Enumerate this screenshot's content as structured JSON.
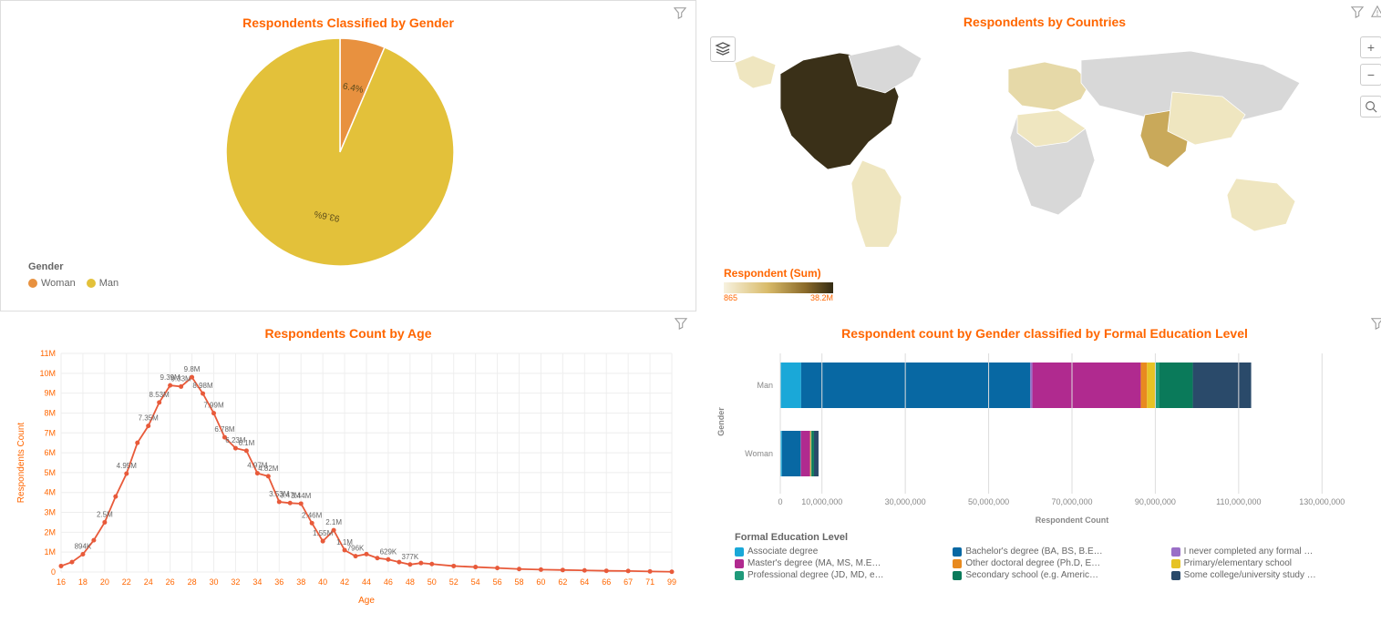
{
  "pie": {
    "title": "Respondents Classified by Gender",
    "legend_title": "Gender",
    "slices": [
      {
        "label": "Woman",
        "pct": 6.4,
        "pct_label": "6.4%",
        "color": "#e8913f"
      },
      {
        "label": "Man",
        "pct": 93.6,
        "pct_label": "93.6%",
        "color": "#e3c13a"
      }
    ],
    "radius": 125,
    "bg": "#ffffff"
  },
  "map": {
    "title": "Respondents by Countries",
    "scale_title": "Respondent (Sum)",
    "scale_min": "865",
    "scale_max": "38.2M",
    "gradient": [
      "#f7f2e0",
      "#d9bb6a",
      "#8a6a2a",
      "#332b14"
    ],
    "land": "#e6d9a8",
    "land_dark": "#3a3018",
    "land_mid": "#c9a95a",
    "land_light": "#efe6c0",
    "land_grey": "#d8d8d8"
  },
  "line": {
    "title": "Respondents Count by Age",
    "xlabel": "Age",
    "ylabel": "Respondents Count",
    "color": "#e85a3a",
    "grid_color": "#eeeeee",
    "bg": "#ffffff",
    "yticks": [
      "0",
      "1M",
      "2M",
      "3M",
      "4M",
      "5M",
      "6M",
      "7M",
      "8M",
      "9M",
      "10M",
      "11M"
    ],
    "ymax": 11,
    "xticks": [
      "16",
      "18",
      "20",
      "22",
      "24",
      "26",
      "28",
      "30",
      "32",
      "34",
      "36",
      "38",
      "40",
      "42",
      "44",
      "46",
      "48",
      "50",
      "52",
      "54",
      "56",
      "58",
      "60",
      "62",
      "64",
      "66",
      "67",
      "71",
      "99"
    ],
    "points": [
      {
        "x": "16",
        "y": 0.3
      },
      {
        "x": "17",
        "y": 0.5
      },
      {
        "x": "18",
        "y": 0.894,
        "lbl": "894K"
      },
      {
        "x": "19",
        "y": 1.6
      },
      {
        "x": "20",
        "y": 2.5,
        "lbl": "2.5M"
      },
      {
        "x": "21",
        "y": 3.8
      },
      {
        "x": "22",
        "y": 4.95,
        "lbl": "4.95M"
      },
      {
        "x": "23",
        "y": 6.5
      },
      {
        "x": "24",
        "y": 7.35,
        "lbl": "7.35M"
      },
      {
        "x": "25",
        "y": 8.53,
        "lbl": "8.53M"
      },
      {
        "x": "26",
        "y": 9.39,
        "lbl": "9.39M"
      },
      {
        "x": "27",
        "y": 9.33,
        "lbl": "9.33M"
      },
      {
        "x": "28",
        "y": 9.8,
        "lbl": "9.8M"
      },
      {
        "x": "29",
        "y": 8.98,
        "lbl": "8.98M"
      },
      {
        "x": "30",
        "y": 7.99,
        "lbl": "7.99M"
      },
      {
        "x": "31",
        "y": 6.78,
        "lbl": "6.78M"
      },
      {
        "x": "32",
        "y": 6.23,
        "lbl": "6.23M"
      },
      {
        "x": "33",
        "y": 6.1,
        "lbl": "6.1M"
      },
      {
        "x": "34",
        "y": 4.97,
        "lbl": "4.97M"
      },
      {
        "x": "35",
        "y": 4.82,
        "lbl": "4.82M"
      },
      {
        "x": "36",
        "y": 3.53,
        "lbl": "3.53M"
      },
      {
        "x": "37",
        "y": 3.47,
        "lbl": "3.47M"
      },
      {
        "x": "38",
        "y": 3.44,
        "lbl": "3.44M"
      },
      {
        "x": "39",
        "y": 2.46,
        "lbl": "2.46M"
      },
      {
        "x": "40",
        "y": 1.55,
        "lbl": "1.55M"
      },
      {
        "x": "41",
        "y": 2.1,
        "lbl": "2.1M"
      },
      {
        "x": "42",
        "y": 1.1,
        "lbl": "1.1M"
      },
      {
        "x": "43",
        "y": 0.796,
        "lbl": "796K"
      },
      {
        "x": "44",
        "y": 0.9
      },
      {
        "x": "45",
        "y": 0.7
      },
      {
        "x": "46",
        "y": 0.629,
        "lbl": "629K"
      },
      {
        "x": "47",
        "y": 0.5
      },
      {
        "x": "48",
        "y": 0.377,
        "lbl": "377K"
      },
      {
        "x": "49",
        "y": 0.45
      },
      {
        "x": "50",
        "y": 0.4
      },
      {
        "x": "52",
        "y": 0.3
      },
      {
        "x": "54",
        "y": 0.25
      },
      {
        "x": "56",
        "y": 0.2
      },
      {
        "x": "58",
        "y": 0.15
      },
      {
        "x": "60",
        "y": 0.12
      },
      {
        "x": "62",
        "y": 0.1
      },
      {
        "x": "64",
        "y": 0.08
      },
      {
        "x": "66",
        "y": 0.06
      },
      {
        "x": "67",
        "y": 0.05
      },
      {
        "x": "71",
        "y": 0.03
      },
      {
        "x": "99",
        "y": 0.01
      }
    ]
  },
  "bar": {
    "title": "Respondent count by Gender classified by Formal Education Level",
    "xlabel": "Respondent Count",
    "ylabel": "Gender",
    "legend_title": "Formal Education Level",
    "bg": "#ffffff",
    "grid_color": "#eeeeee",
    "xmax": 140000000,
    "xticks": [
      "0",
      "10,000,000",
      "30,000,000",
      "50,000,000",
      "70,000,000",
      "90,000,000",
      "110,000,000",
      "130,000,000"
    ],
    "categories": [
      "Man",
      "Woman"
    ],
    "series": [
      {
        "label": "Associate degree",
        "color": "#1aa8d8"
      },
      {
        "label": "Bachelor's degree (BA, BS, B.E…",
        "color": "#0868a3"
      },
      {
        "label": "I never completed any formal …",
        "color": "#9a6fc7"
      },
      {
        "label": "Master's degree (MA, MS, M.E…",
        "color": "#b02a8f"
      },
      {
        "label": "Other doctoral degree (Ph.D, E…",
        "color": "#e88a1f"
      },
      {
        "label": "Primary/elementary school",
        "color": "#e6c325"
      },
      {
        "label": "Professional degree (JD, MD, e…",
        "color": "#1f9a7a"
      },
      {
        "label": "Secondary school (e.g. Americ…",
        "color": "#0a7a5a"
      },
      {
        "label": "Some college/university study …",
        "color": "#2a4a6a"
      }
    ],
    "stacks": {
      "Man": [
        5,
        55,
        0.5,
        26,
        1.5,
        2,
        1,
        8,
        14
      ],
      "Woman": [
        0.4,
        4.5,
        0.05,
        2.2,
        0.1,
        0.15,
        0.08,
        0.6,
        1.1
      ]
    }
  }
}
